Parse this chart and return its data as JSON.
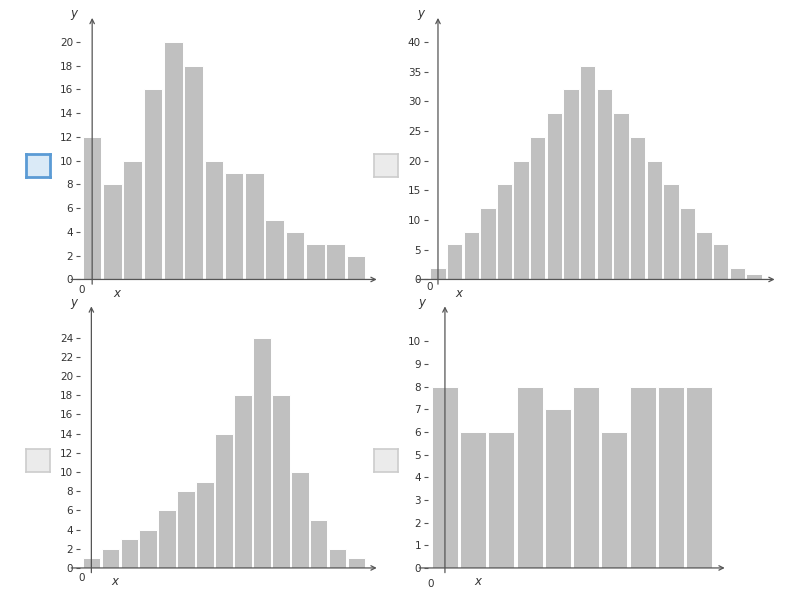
{
  "chart1": {
    "values": [
      12,
      8,
      10,
      16,
      20,
      18,
      10,
      9,
      9,
      5,
      4,
      3,
      3,
      2
    ],
    "ylim": [
      0,
      21
    ],
    "yticks": [
      0,
      2,
      4,
      6,
      8,
      10,
      12,
      14,
      16,
      18,
      20
    ]
  },
  "chart2": {
    "values": [
      2,
      6,
      8,
      12,
      16,
      20,
      24,
      28,
      32,
      36,
      32,
      28,
      24,
      20,
      16,
      12,
      8,
      6,
      2,
      1
    ],
    "ylim": [
      0,
      42
    ],
    "yticks": [
      0,
      5,
      10,
      15,
      20,
      25,
      30,
      35,
      40
    ]
  },
  "chart3": {
    "values": [
      1,
      2,
      3,
      4,
      6,
      8,
      9,
      14,
      18,
      24,
      18,
      10,
      5,
      2,
      1
    ],
    "ylim": [
      0,
      26
    ],
    "yticks": [
      0,
      2,
      4,
      6,
      8,
      10,
      12,
      14,
      16,
      18,
      20,
      22,
      24
    ]
  },
  "chart4": {
    "values": [
      8,
      6,
      6,
      8,
      7,
      8,
      6,
      8,
      8,
      8
    ],
    "ylim": [
      0,
      11
    ],
    "yticks": [
      0,
      1,
      2,
      3,
      4,
      5,
      6,
      7,
      8,
      9,
      10
    ]
  },
  "bar_color": "#c0c0c0",
  "bar_edgecolor": "#ffffff",
  "bg_color": "#ffffff",
  "axis_color": "#555555",
  "tick_color": "#555555",
  "tick_fontsize": 7.5,
  "checkbox1_color": "#5b9bd5",
  "checkbox1_fill": "#daeaf7",
  "checkbox_gray": "#cccccc",
  "checkbox_gray_fill": "#ebebeb"
}
